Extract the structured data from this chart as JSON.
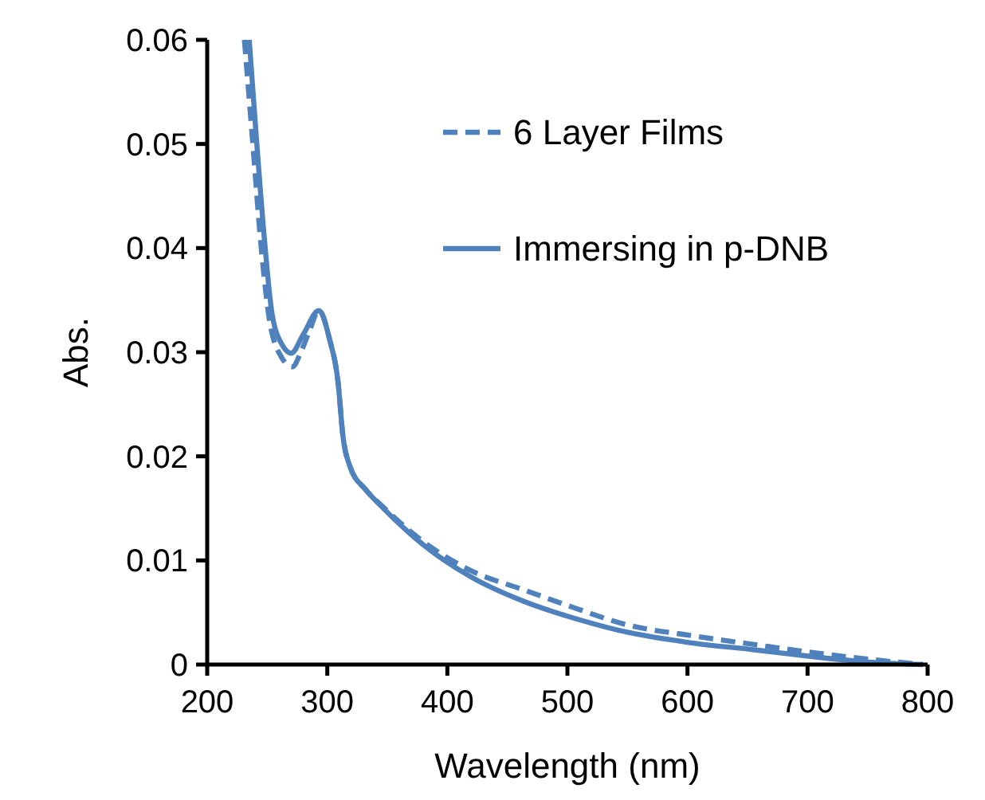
{
  "chart_data": {
    "type": "line",
    "xlabel": "Wavelength (nm)",
    "ylabel": "Abs.",
    "xlim": [
      200,
      800
    ],
    "ylim": [
      0,
      0.06
    ],
    "xticks": [
      200,
      300,
      400,
      500,
      600,
      700,
      800
    ],
    "yticks": [
      0,
      0.01,
      0.02,
      0.03,
      0.04,
      0.05,
      0.06
    ],
    "grid": false,
    "legend": "top right",
    "series": [
      {
        "name": "6 Layer Films",
        "color": "#4f81bd",
        "line_style": "dashed",
        "x": [
          231,
          238,
          245,
          252,
          262,
          271,
          278,
          285,
          293,
          302,
          309,
          313,
          319,
          332,
          345,
          380,
          420,
          463,
          507,
          550,
          602,
          657,
          701,
          744,
          796
        ],
        "values": [
          0.06,
          0.05,
          0.04,
          0.033,
          0.0295,
          0.0286,
          0.03,
          0.032,
          0.034,
          0.0312,
          0.0271,
          0.022,
          0.019,
          0.0168,
          0.0153,
          0.0118,
          0.009,
          0.0072,
          0.0054,
          0.0038,
          0.0028,
          0.0019,
          0.0012,
          0.0006,
          0
        ]
      },
      {
        "name": "Immersing in p-DNB",
        "color": "#4f81bd",
        "line_style": "solid",
        "x": [
          235,
          241,
          248,
          254,
          263,
          270,
          280,
          293,
          302,
          309,
          313,
          319,
          332,
          345,
          380,
          420,
          463,
          507,
          550,
          602,
          657,
          701,
          744,
          796
        ],
        "values": [
          0.06,
          0.0505,
          0.0404,
          0.0337,
          0.0306,
          0.0299,
          0.0317,
          0.034,
          0.0312,
          0.0271,
          0.022,
          0.019,
          0.0168,
          0.0152,
          0.0115,
          0.0084,
          0.0061,
          0.0044,
          0.0031,
          0.0021,
          0.0014,
          0.0008,
          0.0003,
          0
        ]
      }
    ]
  }
}
